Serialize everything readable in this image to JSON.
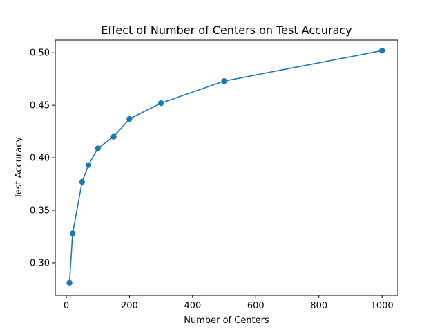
{
  "chart_data": {
    "type": "line",
    "title": "Effect of Number of Centers on Test Accuracy",
    "xlabel": "Number of Centers",
    "ylabel": "Test Accuracy",
    "xlim": [
      -35,
      1050
    ],
    "ylim": [
      0.269,
      0.512
    ],
    "x_ticks": [
      0,
      200,
      400,
      600,
      800,
      1000
    ],
    "x_tick_labels": [
      "0",
      "200",
      "400",
      "600",
      "800",
      "1000"
    ],
    "y_ticks": [
      0.3,
      0.35,
      0.4,
      0.45,
      0.5
    ],
    "y_tick_labels": [
      "0.30",
      "0.35",
      "0.40",
      "0.45",
      "0.50"
    ],
    "grid": false,
    "marker": "circle",
    "colors": {
      "line": "#1f77b4",
      "axes": "#000000",
      "background": "#ffffff"
    },
    "series": [
      {
        "x": [
          10,
          20,
          50,
          70,
          100,
          150,
          200,
          300,
          500,
          1000
        ],
        "y": [
          0.281,
          0.328,
          0.377,
          0.393,
          0.409,
          0.42,
          0.437,
          0.452,
          0.473,
          0.502
        ]
      }
    ]
  }
}
